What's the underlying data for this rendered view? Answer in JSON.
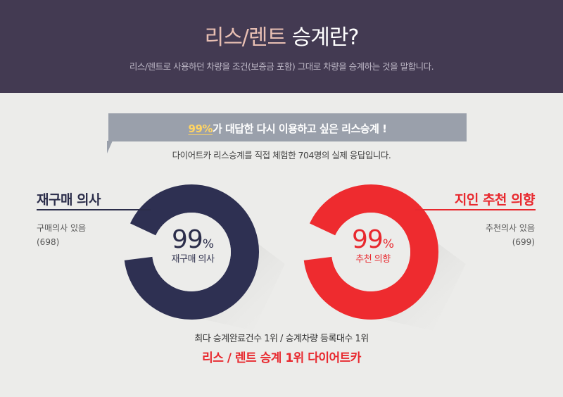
{
  "header": {
    "title_accent": "리스/렌트",
    "title_rest": " 승계란?",
    "subtitle": "리스/렌트로 사용하던 차량을 조건(보증금 포함) 그대로 차량을 승계하는 것을 말합니다."
  },
  "banner": {
    "highlight": "99%",
    "text": "가 대답한 다시 이용하고 싶은 리스승계 !"
  },
  "survey_note": "다이어트카 리스승계를 직접 체험한 704명의 실제 응답입니다.",
  "left_stat": {
    "title": "재구매 의사",
    "desc_line1": "구매의사 있음",
    "desc_line2": "(698)",
    "percent_number": "99",
    "percent_unit": "%",
    "label": "재구매 의사",
    "fraction": 0.99,
    "color": "#2e3052"
  },
  "right_stat": {
    "title": "지인 추천 의향",
    "desc_line1": "추천의사 있음",
    "desc_line2": "(699)",
    "percent_number": "99",
    "percent_unit": "%",
    "label": "추천 의향",
    "fraction": 0.99,
    "color": "#ee2b2f"
  },
  "footer": {
    "sub": "최다 승계완료건수 1위  / 승계차량 등록대수 1위",
    "main": "리스 / 렌트 승계 1위 다이어트카"
  }
}
